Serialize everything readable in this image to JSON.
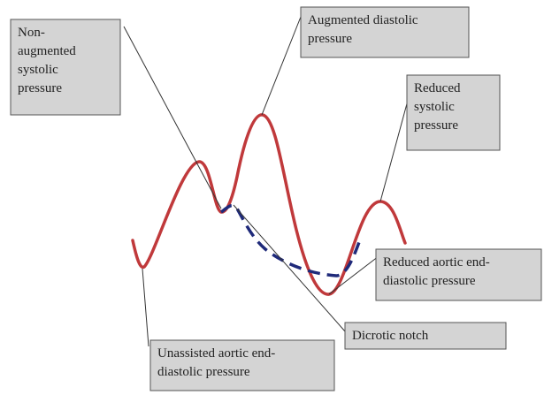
{
  "labels": [
    {
      "lines": [
        "Non-",
        "augmented",
        "systolic",
        "pressure"
      ]
    },
    {
      "lines": [
        "Augmented diastolic",
        "pressure"
      ]
    },
    {
      "lines": [
        "Reduced",
        "systolic",
        "pressure"
      ]
    },
    {
      "lines": [
        "Reduced aortic end-",
        "diastolic pressure"
      ]
    },
    {
      "lines": [
        "Dicrotic notch"
      ]
    },
    {
      "lines": [
        "Unassisted aortic end-",
        "diastolic pressure"
      ]
    }
  ]
}
